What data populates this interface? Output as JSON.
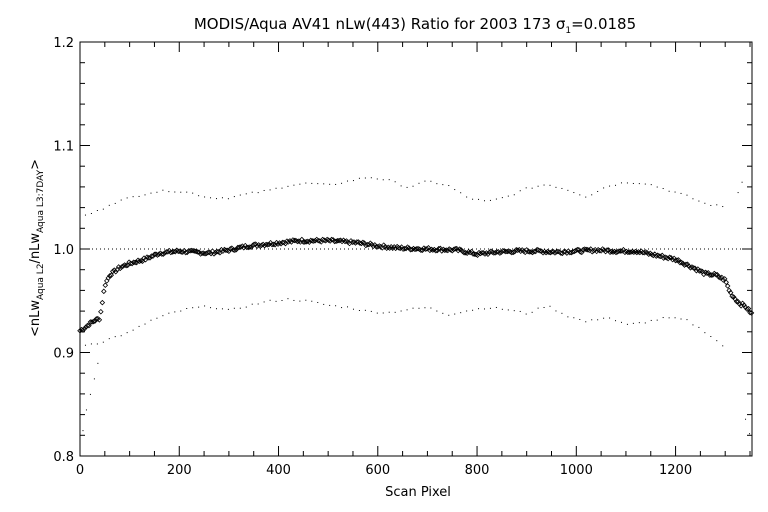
{
  "chart_data": {
    "type": "scatter",
    "title": {
      "prefix": "MODIS/Aqua AV41 nLw(443) Ratio for 2003 173 ",
      "sigma_symbol": "σ",
      "sigma_sub": "1",
      "suffix": "=0.0185"
    },
    "xlabel": "Scan Pixel",
    "ylabel": {
      "open": "<nLw",
      "sub1": "Aqua L2",
      "slash": "/nLw",
      "sub2": "Aqua L3:7DAY",
      "close": ">"
    },
    "xlim": [
      0,
      1354
    ],
    "ylim": [
      0.8,
      1.2
    ],
    "x_ticks": [
      0,
      200,
      400,
      600,
      800,
      1000,
      1200
    ],
    "x_tick_labels": [
      "0",
      "200",
      "400",
      "600",
      "800",
      "1000",
      "1200"
    ],
    "y_ticks": [
      0.8,
      0.9,
      1.0,
      1.1,
      1.2
    ],
    "y_tick_labels": [
      "0.8",
      "0.9",
      "1.0",
      "1.1",
      "1.2"
    ],
    "reference_line": 1.0,
    "colors": {
      "ink": "#000000",
      "background": "#ffffff"
    },
    "series": [
      {
        "role": "mean",
        "marker": "diamond",
        "x": [
          0,
          10,
          20,
          30,
          40,
          50,
          60,
          80,
          100,
          130,
          160,
          200,
          260,
          300,
          340,
          400,
          440,
          500,
          560,
          600,
          640,
          700,
          760,
          800,
          840,
          880,
          920,
          960,
          1000,
          1040,
          1080,
          1120,
          1160,
          1200,
          1240,
          1260,
          1280,
          1300,
          1310,
          1320,
          1330,
          1340,
          1354
        ],
        "y": [
          0.921,
          0.924,
          0.928,
          0.931,
          0.933,
          0.965,
          0.975,
          0.982,
          0.986,
          0.99,
          0.996,
          0.998,
          0.996,
          0.999,
          1.003,
          1.006,
          1.008,
          1.008,
          1.006,
          1.003,
          1.001,
          1.0,
          0.999,
          0.995,
          0.997,
          0.998,
          0.998,
          0.997,
          0.998,
          0.999,
          0.998,
          0.998,
          0.994,
          0.99,
          0.981,
          0.976,
          0.975,
          0.97,
          0.958,
          0.952,
          0.947,
          0.945,
          0.937
        ]
      },
      {
        "role": "upper",
        "marker": "dot",
        "x": [
          10,
          40,
          60,
          100,
          140,
          180,
          220,
          260,
          300,
          340,
          380,
          420,
          460,
          500,
          540,
          580,
          620,
          660,
          700,
          740,
          780,
          820,
          860,
          900,
          940,
          980,
          1020,
          1060,
          1100,
          1140,
          1180,
          1220,
          1260,
          1300
        ],
        "y": [
          1.033,
          1.038,
          1.044,
          1.05,
          1.055,
          1.057,
          1.055,
          1.05,
          1.05,
          1.054,
          1.057,
          1.062,
          1.064,
          1.062,
          1.066,
          1.07,
          1.067,
          1.06,
          1.066,
          1.062,
          1.05,
          1.046,
          1.051,
          1.059,
          1.063,
          1.058,
          1.051,
          1.061,
          1.065,
          1.064,
          1.058,
          1.052,
          1.044,
          1.041
        ]
      },
      {
        "role": "lower",
        "marker": "dot",
        "x": [
          10,
          40,
          60,
          100,
          140,
          180,
          220,
          260,
          300,
          340,
          380,
          420,
          460,
          500,
          540,
          580,
          620,
          660,
          700,
          740,
          780,
          820,
          860,
          900,
          940,
          980,
          1020,
          1060,
          1100,
          1140,
          1180,
          1220,
          1260,
          1300
        ],
        "y": [
          0.908,
          0.91,
          0.914,
          0.92,
          0.931,
          0.938,
          0.943,
          0.945,
          0.941,
          0.946,
          0.95,
          0.952,
          0.95,
          0.946,
          0.944,
          0.94,
          0.939,
          0.942,
          0.944,
          0.937,
          0.941,
          0.944,
          0.942,
          0.938,
          0.946,
          0.936,
          0.93,
          0.935,
          0.927,
          0.93,
          0.934,
          0.932,
          0.92,
          0.905
        ]
      },
      {
        "role": "edge-outliers",
        "marker": "dot",
        "x": [
          5,
          12,
          20,
          28,
          35,
          1325,
          1333,
          1340,
          1348
        ],
        "y": [
          0.825,
          0.845,
          0.86,
          0.875,
          0.89,
          1.055,
          1.065,
          0.836,
          0.822
        ]
      }
    ]
  }
}
